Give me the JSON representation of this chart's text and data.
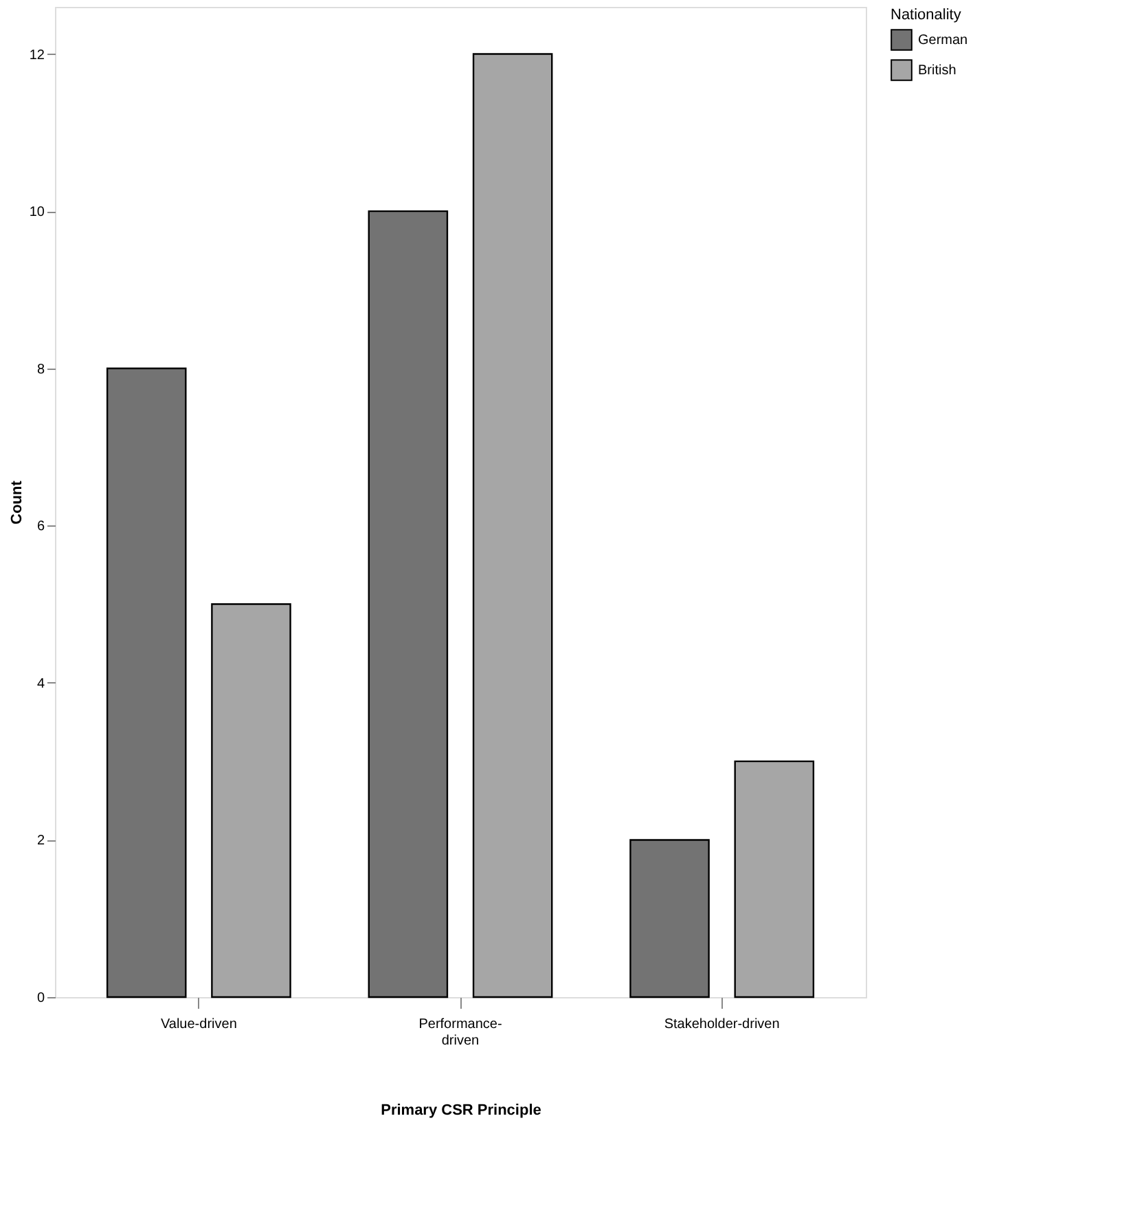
{
  "chart_data": {
    "type": "bar",
    "xlabel": "Primary CSR Principle",
    "ylabel": "Count",
    "legend_title": "Nationality",
    "categories": [
      "Value-driven",
      "Performance-\ndriven",
      "Stakeholder-driven"
    ],
    "series": [
      {
        "name": "German",
        "color": "#737373",
        "values": [
          8,
          10,
          2
        ]
      },
      {
        "name": "British",
        "color": "#a6a6a6",
        "values": [
          5,
          12,
          3
        ]
      }
    ],
    "ylim": [
      0,
      12.6
    ],
    "yticks": [
      0,
      2,
      4,
      6,
      8,
      10,
      12
    ],
    "grid": false,
    "legend": "top right"
  }
}
